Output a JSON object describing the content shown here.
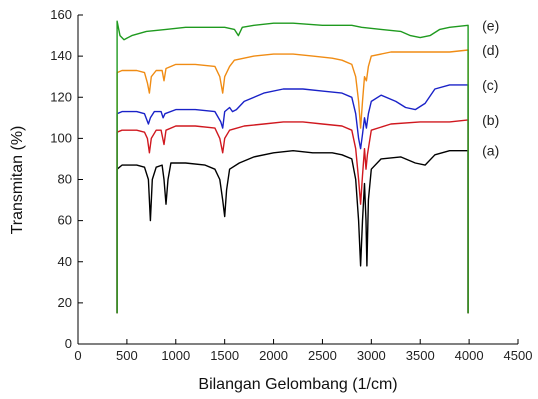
{
  "chart_data": {
    "type": "line",
    "title": "",
    "xlabel": "Bilangan Gelombang (1/cm)",
    "ylabel": "Transmitan (%)",
    "xlim": [
      0,
      4500
    ],
    "ylim": [
      0,
      160
    ],
    "xticks": [
      0,
      500,
      1000,
      1500,
      2000,
      2500,
      3000,
      3500,
      4000,
      4500
    ],
    "yticks": [
      0,
      20,
      40,
      60,
      80,
      100,
      120,
      140,
      160
    ],
    "grid": false,
    "legend": "inline labels at right end of each trace",
    "series": [
      {
        "name": "(a)",
        "color": "#000000",
        "points": [
          [
            400,
            85
          ],
          [
            450,
            87
          ],
          [
            600,
            87
          ],
          [
            680,
            86
          ],
          [
            720,
            80
          ],
          [
            740,
            60
          ],
          [
            760,
            80
          ],
          [
            800,
            86
          ],
          [
            860,
            87
          ],
          [
            880,
            80
          ],
          [
            900,
            68
          ],
          [
            920,
            80
          ],
          [
            950,
            88
          ],
          [
            1100,
            88
          ],
          [
            1300,
            87
          ],
          [
            1400,
            85
          ],
          [
            1450,
            80
          ],
          [
            1480,
            70
          ],
          [
            1500,
            62
          ],
          [
            1520,
            75
          ],
          [
            1550,
            85
          ],
          [
            1650,
            88
          ],
          [
            1800,
            91
          ],
          [
            2000,
            93
          ],
          [
            2200,
            94
          ],
          [
            2400,
            93
          ],
          [
            2600,
            93
          ],
          [
            2700,
            92
          ],
          [
            2800,
            90
          ],
          [
            2840,
            80
          ],
          [
            2870,
            60
          ],
          [
            2890,
            38
          ],
          [
            2910,
            60
          ],
          [
            2930,
            78
          ],
          [
            2945,
            60
          ],
          [
            2955,
            38
          ],
          [
            2970,
            70
          ],
          [
            3000,
            85
          ],
          [
            3100,
            90
          ],
          [
            3300,
            91
          ],
          [
            3450,
            88
          ],
          [
            3550,
            87
          ],
          [
            3650,
            92
          ],
          [
            3800,
            94
          ],
          [
            3990,
            94
          ]
        ]
      },
      {
        "name": "(b)",
        "color": "#d0181f",
        "points": [
          [
            400,
            103
          ],
          [
            450,
            104
          ],
          [
            600,
            104
          ],
          [
            680,
            103
          ],
          [
            710,
            100
          ],
          [
            730,
            93
          ],
          [
            750,
            100
          ],
          [
            800,
            104
          ],
          [
            850,
            104
          ],
          [
            880,
            97
          ],
          [
            900,
            104
          ],
          [
            1000,
            106
          ],
          [
            1200,
            106
          ],
          [
            1400,
            105
          ],
          [
            1450,
            100
          ],
          [
            1480,
            93
          ],
          [
            1500,
            100
          ],
          [
            1550,
            104
          ],
          [
            1700,
            106
          ],
          [
            1900,
            107
          ],
          [
            2100,
            108
          ],
          [
            2300,
            108
          ],
          [
            2500,
            107
          ],
          [
            2700,
            106
          ],
          [
            2800,
            104
          ],
          [
            2840,
            95
          ],
          [
            2870,
            80
          ],
          [
            2890,
            68
          ],
          [
            2910,
            82
          ],
          [
            2930,
            95
          ],
          [
            2945,
            85
          ],
          [
            2960,
            92
          ],
          [
            3000,
            104
          ],
          [
            3200,
            107
          ],
          [
            3500,
            108
          ],
          [
            3800,
            108
          ],
          [
            3990,
            109
          ]
        ]
      },
      {
        "name": "(c)",
        "color": "#1a22c8",
        "points": [
          [
            400,
            112
          ],
          [
            450,
            113
          ],
          [
            600,
            113
          ],
          [
            680,
            112
          ],
          [
            720,
            107
          ],
          [
            740,
            110
          ],
          [
            780,
            113
          ],
          [
            850,
            113
          ],
          [
            870,
            110
          ],
          [
            890,
            112
          ],
          [
            1000,
            114
          ],
          [
            1200,
            114
          ],
          [
            1400,
            113
          ],
          [
            1460,
            108
          ],
          [
            1480,
            105
          ],
          [
            1500,
            113
          ],
          [
            1550,
            115
          ],
          [
            1580,
            113
          ],
          [
            1620,
            114
          ],
          [
            1700,
            118
          ],
          [
            1900,
            122
          ],
          [
            2100,
            124
          ],
          [
            2300,
            124
          ],
          [
            2500,
            123
          ],
          [
            2700,
            122
          ],
          [
            2800,
            120
          ],
          [
            2840,
            112
          ],
          [
            2870,
            100
          ],
          [
            2890,
            95
          ],
          [
            2910,
            102
          ],
          [
            2930,
            110
          ],
          [
            2950,
            105
          ],
          [
            2970,
            112
          ],
          [
            3000,
            118
          ],
          [
            3100,
            121
          ],
          [
            3250,
            118
          ],
          [
            3350,
            115
          ],
          [
            3450,
            114
          ],
          [
            3550,
            117
          ],
          [
            3650,
            124
          ],
          [
            3800,
            126
          ],
          [
            3990,
            126
          ]
        ]
      },
      {
        "name": "(d)",
        "color": "#f08c14",
        "points": [
          [
            400,
            132
          ],
          [
            450,
            133
          ],
          [
            600,
            133
          ],
          [
            680,
            132
          ],
          [
            710,
            127
          ],
          [
            730,
            122
          ],
          [
            750,
            130
          ],
          [
            800,
            133
          ],
          [
            860,
            133
          ],
          [
            880,
            128
          ],
          [
            900,
            134
          ],
          [
            1000,
            136
          ],
          [
            1200,
            136
          ],
          [
            1400,
            135
          ],
          [
            1450,
            130
          ],
          [
            1480,
            122
          ],
          [
            1500,
            130
          ],
          [
            1550,
            135
          ],
          [
            1600,
            138
          ],
          [
            1800,
            140
          ],
          [
            2000,
            141
          ],
          [
            2200,
            141
          ],
          [
            2400,
            140
          ],
          [
            2600,
            139
          ],
          [
            2700,
            138
          ],
          [
            2800,
            136
          ],
          [
            2840,
            130
          ],
          [
            2870,
            118
          ],
          [
            2890,
            105
          ],
          [
            2910,
            118
          ],
          [
            2930,
            130
          ],
          [
            2950,
            128
          ],
          [
            2970,
            135
          ],
          [
            3000,
            140
          ],
          [
            3200,
            142
          ],
          [
            3500,
            142
          ],
          [
            3800,
            142
          ],
          [
            3990,
            143
          ]
        ]
      },
      {
        "name": "(e)",
        "color": "#1f9a1f",
        "points": [
          [
            400,
            157
          ],
          [
            430,
            150
          ],
          [
            470,
            148
          ],
          [
            550,
            150
          ],
          [
            700,
            152
          ],
          [
            900,
            153
          ],
          [
            1100,
            154
          ],
          [
            1300,
            154
          ],
          [
            1500,
            154
          ],
          [
            1600,
            153
          ],
          [
            1640,
            150
          ],
          [
            1680,
            154
          ],
          [
            1800,
            155
          ],
          [
            2000,
            156
          ],
          [
            2200,
            156
          ],
          [
            2500,
            155
          ],
          [
            2800,
            155
          ],
          [
            2900,
            154
          ],
          [
            3100,
            153
          ],
          [
            3300,
            152
          ],
          [
            3400,
            150
          ],
          [
            3500,
            149
          ],
          [
            3600,
            150
          ],
          [
            3700,
            153
          ],
          [
            3800,
            154
          ],
          [
            3990,
            155
          ]
        ]
      }
    ]
  }
}
